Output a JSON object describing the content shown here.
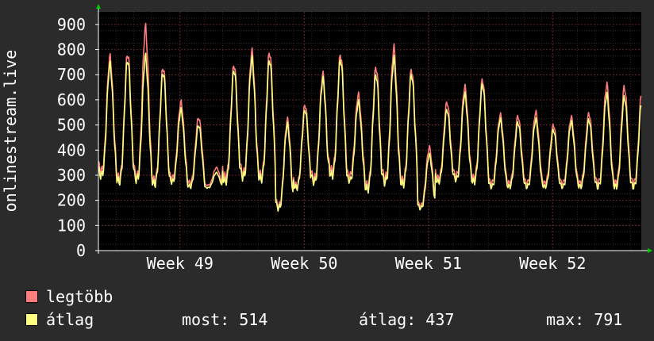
{
  "chart_data": {
    "type": "line",
    "ylabel": "onlinestream.live",
    "ylim": [
      0,
      950
    ],
    "yticks": [
      0,
      100,
      200,
      300,
      400,
      500,
      600,
      700,
      800,
      900
    ],
    "x_range_days": [
      0,
      30.6
    ],
    "x_ticks": [
      {
        "label": "Week 49",
        "x": 4.6
      },
      {
        "label": "Week 50",
        "x": 11.6
      },
      {
        "label": "Week 51",
        "x": 18.6
      },
      {
        "label": "Week 52",
        "x": 25.6
      }
    ],
    "grid": true,
    "series": [
      {
        "name": "legtöbb",
        "color": "#ff7c7c",
        "daily_peak": [
          770,
          785,
          885,
          730,
          590,
          530,
          330,
          740,
          790,
          790,
          520,
          580,
          700,
          780,
          620,
          730,
          805,
          720,
          410,
          590,
          650,
          680,
          540,
          535,
          550,
          500,
          530,
          545,
          660,
          650
        ],
        "daily_trough": [
          320,
          290,
          295,
          280,
          290,
          270,
          260,
          295,
          310,
          300,
          180,
          260,
          290,
          320,
          300,
          260,
          290,
          280,
          180,
          290,
          300,
          290,
          270,
          270,
          270,
          270,
          270,
          270,
          270,
          270
        ]
      },
      {
        "name": "átlag",
        "color": "#ffff80",
        "daily_peak": [
          740,
          760,
          770,
          710,
          560,
          500,
          310,
          720,
          760,
          760,
          500,
          560,
          680,
          760,
          590,
          700,
          760,
          700,
          380,
          560,
          620,
          660,
          520,
          510,
          520,
          480,
          510,
          520,
          620,
          610
        ],
        "daily_trough": [
          300,
          275,
          285,
          265,
          275,
          255,
          250,
          275,
          295,
          285,
          170,
          250,
          275,
          300,
          280,
          245,
          275,
          265,
          170,
          275,
          285,
          275,
          255,
          255,
          255,
          255,
          255,
          255,
          255,
          255
        ]
      }
    ]
  },
  "legend": {
    "items": [
      {
        "label": "legtöbb",
        "color": "#ff7c7c"
      },
      {
        "label": "átlag",
        "color": "#ffff80"
      }
    ]
  },
  "stats": {
    "most": "most: 514",
    "atlag": "átlag: 437",
    "max": "max: 791"
  }
}
